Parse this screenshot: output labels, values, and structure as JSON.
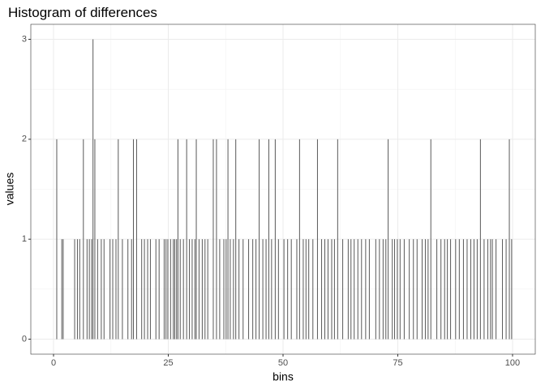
{
  "chart_data": {
    "type": "bar",
    "title": "Histogram of differences",
    "x_label": "bins",
    "y_label": "values",
    "x": [
      0.7,
      1.8,
      2.1,
      4.6,
      5.2,
      5.7,
      6.5,
      7.3,
      7.8,
      8.3,
      8.6,
      9.0,
      9.6,
      10.4,
      11.0,
      12.3,
      12.9,
      13.6,
      14.1,
      15.0,
      16.2,
      17.0,
      17.4,
      18.1,
      19.2,
      19.8,
      20.5,
      21.1,
      22.3,
      23.0,
      24.1,
      24.5,
      24.9,
      25.5,
      26.1,
      26.4,
      26.8,
      27.1,
      27.6,
      28.3,
      29.0,
      29.6,
      30.2,
      30.8,
      31.1,
      31.7,
      32.4,
      33.0,
      33.6,
      34.8,
      35.5,
      36.2,
      37.1,
      37.6,
      38.0,
      38.5,
      39.2,
      39.7,
      40.4,
      41.3,
      42.5,
      43.4,
      44.1,
      44.8,
      45.6,
      46.3,
      46.9,
      47.5,
      48.3,
      49.0,
      50.2,
      51.0,
      51.8,
      53.0,
      53.6,
      54.4,
      55.0,
      55.6,
      56.5,
      57.5,
      58.4,
      59.1,
      59.8,
      60.6,
      61.2,
      61.9,
      63.0,
      64.2,
      64.8,
      65.5,
      66.3,
      67.1,
      68.0,
      68.8,
      70.2,
      71.0,
      71.8,
      72.4,
      72.9,
      73.8,
      74.3,
      74.9,
      75.5,
      76.4,
      77.5,
      78.4,
      79.2,
      80.3,
      81.0,
      81.6,
      82.2,
      83.5,
      84.4,
      85.2,
      85.8,
      86.5,
      87.6,
      88.4,
      89.3,
      90.1,
      90.9,
      91.6,
      92.3,
      93.0,
      93.8,
      94.6,
      95.2,
      95.6,
      96.4,
      97.8,
      98.6,
      99.3,
      99.8
    ],
    "values": [
      2,
      1,
      1,
      1,
      1,
      1,
      2,
      1,
      1,
      1,
      3,
      2,
      1,
      1,
      1,
      1,
      1,
      1,
      2,
      1,
      1,
      1,
      2,
      2,
      1,
      1,
      1,
      1,
      1,
      1,
      1,
      1,
      1,
      1,
      1,
      1,
      1,
      2,
      1,
      1,
      2,
      1,
      1,
      1,
      2,
      1,
      1,
      1,
      1,
      2,
      2,
      1,
      1,
      1,
      2,
      1,
      1,
      2,
      1,
      1,
      1,
      1,
      1,
      2,
      1,
      1,
      2,
      1,
      2,
      1,
      1,
      1,
      1,
      1,
      2,
      1,
      1,
      1,
      1,
      2,
      1,
      1,
      1,
      1,
      1,
      2,
      1,
      1,
      1,
      1,
      1,
      1,
      1,
      1,
      1,
      1,
      1,
      1,
      2,
      1,
      1,
      1,
      1,
      1,
      1,
      1,
      1,
      1,
      1,
      1,
      2,
      1,
      1,
      1,
      1,
      1,
      1,
      1,
      1,
      1,
      1,
      1,
      1,
      2,
      1,
      1,
      1,
      1,
      1,
      1,
      1,
      2,
      1
    ],
    "color": "#595959",
    "xlim": [
      -4.95,
      104.95
    ],
    "xticks": [
      0,
      25,
      50,
      75,
      100
    ],
    "ylim": [
      -0.15,
      3.15
    ],
    "yticks": [
      0,
      1,
      2,
      3
    ],
    "grid": true
  }
}
